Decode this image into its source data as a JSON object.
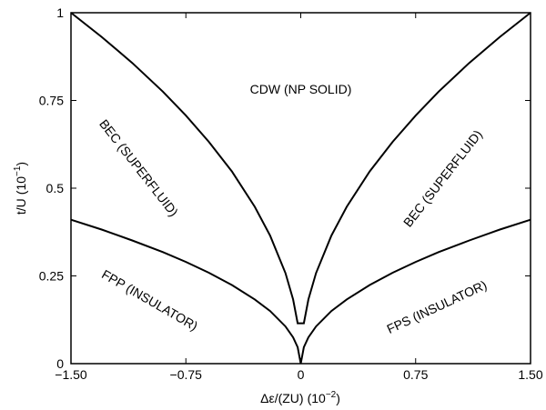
{
  "chart_data": {
    "type": "line",
    "title": "",
    "xlabel_main": "Δε/(ZU)",
    "xlabel_unit_base": "(10",
    "xlabel_unit_exp": "−2",
    "xlabel_unit_close": ")",
    "ylabel_main": "t/U",
    "ylabel_unit_base": "(10",
    "ylabel_unit_exp": "−1",
    "ylabel_unit_close": ")",
    "xlim": [
      -1.5,
      1.5
    ],
    "ylim": [
      0,
      1
    ],
    "xticks": [
      {
        "value": -1.5,
        "label": "−1.50"
      },
      {
        "value": -0.75,
        "label": "−0.75"
      },
      {
        "value": 0,
        "label": "0"
      },
      {
        "value": 0.75,
        "label": "0.75"
      },
      {
        "value": 1.5,
        "label": "1.50"
      }
    ],
    "yticks": [
      {
        "value": 0,
        "label": "0"
      },
      {
        "value": 0.25,
        "label": "0.25"
      },
      {
        "value": 0.5,
        "label": "0.5"
      },
      {
        "value": 0.75,
        "label": "0.75"
      },
      {
        "value": 1,
        "label": "1"
      }
    ],
    "series": [
      {
        "x": [
          -1.5,
          -1.3,
          -1.1,
          -0.9,
          -0.75,
          -0.6,
          -0.45,
          -0.3,
          -0.2,
          -0.1,
          -0.05,
          -0.02,
          0.02,
          0.05,
          0.1,
          0.2,
          0.3,
          0.45,
          0.6,
          0.75,
          0.9,
          1.1,
          1.3,
          1.5
        ],
        "y": [
          1.0,
          0.931,
          0.857,
          0.775,
          0.707,
          0.632,
          0.548,
          0.447,
          0.365,
          0.258,
          0.183,
          0.115,
          0.115,
          0.183,
          0.258,
          0.365,
          0.447,
          0.548,
          0.632,
          0.707,
          0.775,
          0.857,
          0.931,
          1.0
        ]
      },
      {
        "x": [
          -1.5,
          -1.3,
          -1.1,
          -0.9,
          -0.75,
          -0.6,
          -0.45,
          -0.3,
          -0.2,
          -0.1,
          -0.05,
          -0.02,
          0,
          0.02,
          0.05,
          0.1,
          0.2,
          0.3,
          0.45,
          0.6,
          0.75,
          0.9,
          1.1,
          1.3,
          1.5
        ],
        "y": [
          0.41,
          0.382,
          0.351,
          0.318,
          0.29,
          0.259,
          0.224,
          0.183,
          0.15,
          0.106,
          0.075,
          0.047,
          0.0,
          0.047,
          0.075,
          0.106,
          0.15,
          0.183,
          0.224,
          0.259,
          0.29,
          0.318,
          0.351,
          0.382,
          0.41
        ]
      }
    ],
    "annotations": [
      {
        "text": "CDW (NP SOLID)",
        "x": 0.0,
        "y": 0.77,
        "rotation": 0
      },
      {
        "text": "BEC (SUPERFLUID)",
        "x": -1.08,
        "y": 0.55,
        "rotation": 52
      },
      {
        "text": "BEC (SUPERFLUID)",
        "x": 0.95,
        "y": 0.52,
        "rotation": -52
      },
      {
        "text": "FPP (INSULATOR)",
        "x": -1.0,
        "y": 0.17,
        "rotation": 30
      },
      {
        "text": "FPS (INSULATOR)",
        "x": 0.9,
        "y": 0.15,
        "rotation": -25
      }
    ]
  }
}
